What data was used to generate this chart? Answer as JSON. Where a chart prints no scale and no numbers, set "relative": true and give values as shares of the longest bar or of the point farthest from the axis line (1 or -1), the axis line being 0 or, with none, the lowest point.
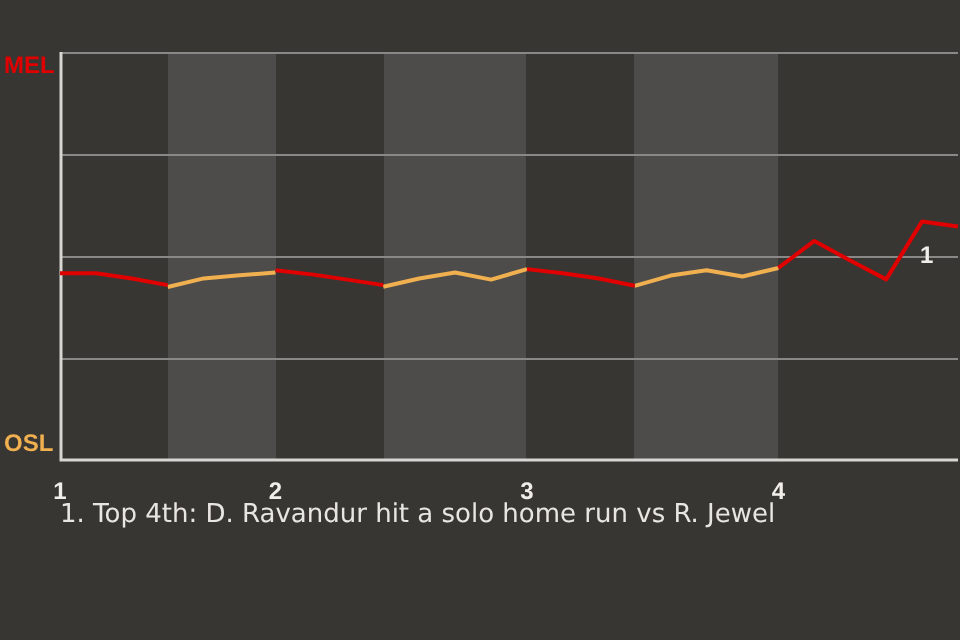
{
  "chart_data": {
    "type": "line",
    "relative": true,
    "legend": false,
    "ref_lines": [
      {
        "axis": "y",
        "value": 0.4275,
        "color": "#8a8886"
      },
      {
        "axis": "y",
        "value": 0.855,
        "color": "#8a8886"
      },
      {
        "axis": "y",
        "value": 1.2825,
        "color": "#8a8886"
      }
    ],
    "categories": [
      "1",
      null,
      null,
      null,
      null,
      null,
      "2",
      null,
      null,
      null,
      null,
      null,
      null,
      "3",
      null,
      null,
      null,
      null,
      null,
      null,
      "4",
      null,
      null,
      null,
      null,
      null
    ],
    "series": [
      {
        "color": "#e00000",
        "values": [
          0.783,
          0.783,
          0.761,
          0.733,
          null,
          null,
          0.795,
          0.778,
          0.756,
          0.733,
          null,
          null,
          null,
          0.8,
          0.783,
          0.761,
          0.73,
          null,
          null,
          null,
          0.805,
          0.918,
          0.836,
          0.757,
          1,
          0.979
        ]
      },
      {
        "color": "#f0b050",
        "values": [
          null,
          null,
          null,
          0.725,
          0.761,
          0.774,
          0.786,
          null,
          null,
          0.726,
          0.761,
          0.786,
          0.756,
          0.8,
          null,
          null,
          0.73,
          0.773,
          0.795,
          0.769,
          0.805,
          null,
          null,
          null,
          null,
          null
        ]
      }
    ],
    "annotations": [
      "MEL",
      "OSL",
      "1",
      "1. Top 4th: D. Ravandur hit a solo home run vs R. Jewel"
    ]
  }
}
